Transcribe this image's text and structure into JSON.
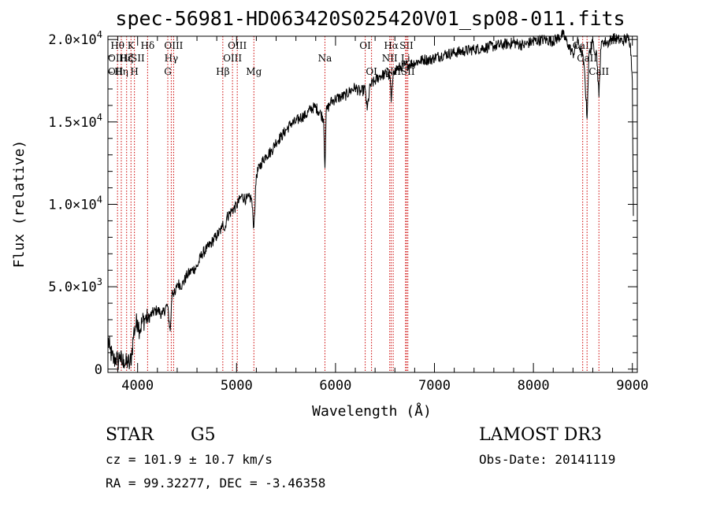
{
  "chart_data": {
    "type": "line",
    "title": "spec-56981-HD063420S025420V01_sp08-011.fits",
    "xlabel": "Wavelength (Å)",
    "ylabel": "Flux (relative)",
    "xlim": [
      3700,
      9050
    ],
    "ylim": [
      -200,
      20200
    ],
    "x_ticks": [
      4000,
      5000,
      6000,
      7000,
      8000,
      9000
    ],
    "x_tick_labels": [
      "4000",
      "5000",
      "6000",
      "7000",
      "8000",
      "9000"
    ],
    "y_ticks": [
      0,
      5000,
      10000,
      15000,
      20000
    ],
    "y_tick_labels": [
      {
        "mantissa": "0",
        "exp": ""
      },
      {
        "mantissa": "5.0×10",
        "exp": "3"
      },
      {
        "mantissa": "1.0×10",
        "exp": "4"
      },
      {
        "mantissa": "1.5×10",
        "exp": "4"
      },
      {
        "mantissa": "2.0×10",
        "exp": "4"
      }
    ],
    "series": [
      {
        "name": "spectrum",
        "x": [
          3700,
          3720,
          3740,
          3760,
          3780,
          3800,
          3820,
          3840,
          3860,
          3880,
          3900,
          3920,
          3940,
          3960,
          3980,
          4000,
          4020,
          4050,
          4080,
          4100,
          4150,
          4200,
          4250,
          4300,
          4330,
          4350,
          4380,
          4400,
          4450,
          4500,
          4550,
          4600,
          4650,
          4700,
          4750,
          4800,
          4850,
          4861,
          4880,
          4900,
          4950,
          5000,
          5050,
          5100,
          5150,
          5175,
          5200,
          5250,
          5300,
          5350,
          5400,
          5450,
          5500,
          5550,
          5600,
          5650,
          5700,
          5750,
          5800,
          5850,
          5880,
          5893,
          5905,
          5950,
          6000,
          6050,
          6100,
          6150,
          6200,
          6250,
          6300,
          6320,
          6350,
          6400,
          6450,
          6500,
          6550,
          6563,
          6580,
          6600,
          6650,
          6700,
          6750,
          6800,
          6850,
          6900,
          6950,
          7000,
          7100,
          7200,
          7300,
          7400,
          7500,
          7600,
          7700,
          7800,
          7900,
          8000,
          8100,
          8200,
          8300,
          8350,
          8400,
          8450,
          8498,
          8520,
          8542,
          8560,
          8600,
          8640,
          8662,
          8680,
          8700,
          8750,
          8800,
          8850,
          8900,
          8950,
          8980,
          9000,
          9010
        ],
        "y": [
          1800,
          1200,
          800,
          500,
          700,
          400,
          900,
          300,
          600,
          250,
          500,
          200,
          900,
          2200,
          2600,
          3000,
          2400,
          2900,
          3100,
          3000,
          3400,
          3600,
          3300,
          3900,
          2300,
          4800,
          4500,
          5200,
          5100,
          5700,
          6000,
          6200,
          7000,
          7300,
          7700,
          8100,
          8500,
          9000,
          8400,
          9200,
          9600,
          9900,
          10500,
          10300,
          10400,
          8600,
          11800,
          12500,
          13000,
          13200,
          13800,
          14100,
          14500,
          14900,
          15000,
          15300,
          15400,
          15800,
          15900,
          15500,
          15200,
          12200,
          15600,
          16200,
          16400,
          16500,
          16600,
          16900,
          17100,
          16800,
          17000,
          15700,
          17200,
          17500,
          17800,
          17900,
          17800,
          16200,
          17600,
          18200,
          18300,
          18400,
          18500,
          18600,
          18700,
          18800,
          18750,
          18900,
          19100,
          19200,
          19300,
          19400,
          19500,
          19600,
          19700,
          19800,
          19650,
          19900,
          20000,
          19900,
          20300,
          19700,
          19100,
          19900,
          19000,
          17800,
          15200,
          19000,
          19800,
          19100,
          16500,
          19400,
          19900,
          19800,
          20100,
          20000,
          19900,
          20100,
          19800,
          17500,
          9300
        ]
      }
    ],
    "line_markers": [
      {
        "label": "Hθ",
        "wl": 3797,
        "row": 1
      },
      {
        "label": "Hη",
        "wl": 3835,
        "row": 3
      },
      {
        "label": "Hζ",
        "wl": 3889,
        "row": 2
      },
      {
        "label": "K",
        "wl": 3933,
        "row": 1
      },
      {
        "label": "H",
        "wl": 3968,
        "row": 3
      },
      {
        "label": "Hδ",
        "wl": 4101,
        "row": 1
      },
      {
        "label": "G",
        "wl": 4305,
        "row": 3
      },
      {
        "label": "Hγ",
        "wl": 4340,
        "row": 2
      },
      {
        "label": "OIII",
        "wl": 4364,
        "row": 1
      },
      {
        "label": "Hβ",
        "wl": 4861,
        "row": 3
      },
      {
        "label": "OIII",
        "wl": 4959,
        "row": 2
      },
      {
        "label": "OIII",
        "wl": 5007,
        "row": 1
      },
      {
        "label": "Mg",
        "wl": 5175,
        "row": 3
      },
      {
        "label": "Na",
        "wl": 5893,
        "row": 2
      },
      {
        "label": "OI",
        "wl": 6300,
        "row": 1
      },
      {
        "label": "OI",
        "wl": 6364,
        "row": 3
      },
      {
        "label": "NII",
        "wl": 6548,
        "row": 2
      },
      {
        "label": "Hα",
        "wl": 6563,
        "row": 1
      },
      {
        "label": "NII",
        "wl": 6583,
        "row": 3
      },
      {
        "label": "SII",
        "wl": 6717,
        "row": 1
      },
      {
        "label": "Li",
        "wl": 6708,
        "row": 2
      },
      {
        "label": "SII",
        "wl": 6731,
        "row": 3
      },
      {
        "label": "CaII",
        "wl": 8498,
        "row": 1
      },
      {
        "label": "CaII",
        "wl": 8542,
        "row": 2
      },
      {
        "label": "CaII",
        "wl": 8662,
        "row": 3
      }
    ],
    "left_labels": [
      {
        "label": "OII",
        "row": 2
      },
      {
        "label": "OII",
        "row": 3
      },
      {
        "label": "Hε",
        "row": 2
      },
      {
        "label": "SII",
        "row": 2
      }
    ],
    "colors": {
      "spectrum": "#000000",
      "markers": "#cc0000",
      "axes": "#000000"
    }
  },
  "info": {
    "object_class": "STAR",
    "subclass": "G5",
    "survey": "LAMOST DR3",
    "redshift_text": "cz = 101.9 ± 10.7 km/s",
    "obs_date_text": "Obs-Date: 20141119",
    "coords_text": "RA =  99.32277, DEC =  -3.46358"
  }
}
